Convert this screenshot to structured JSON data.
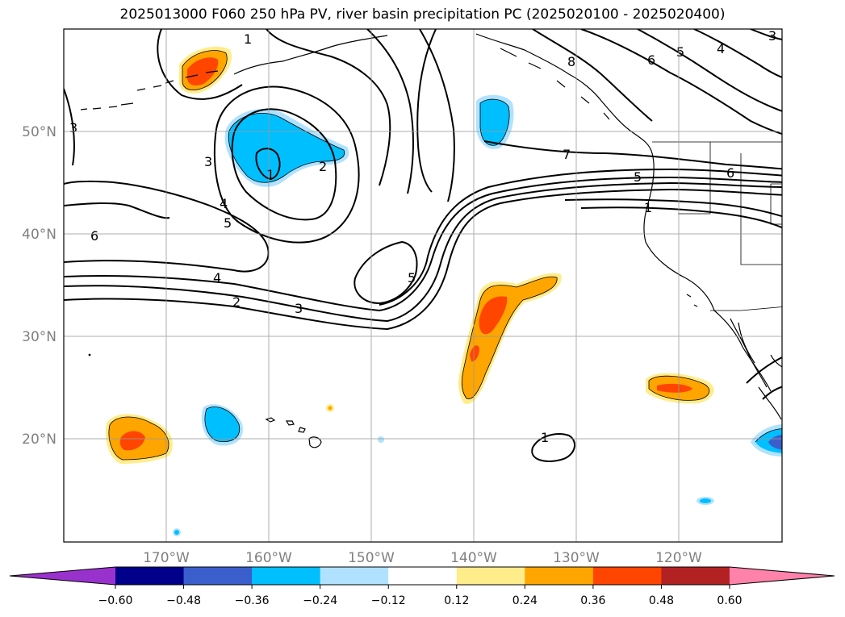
{
  "title": "2025013000 F060 250 hPa PV, river basin precipitation PC (2025020100 - 2025020400)",
  "lon_labels": [
    "170°W",
    "160°W",
    "150°W",
    "140°W",
    "130°W",
    "120°W"
  ],
  "lat_labels": [
    "50°N",
    "40°N",
    "30°N",
    "20°N"
  ],
  "colorbar": {
    "ticks": [
      "−0.60",
      "−0.48",
      "−0.36",
      "−0.24",
      "−0.12",
      "0.12",
      "0.24",
      "0.36",
      "0.48",
      "0.60"
    ],
    "colors": [
      "#9932CC",
      "#00008B",
      "#3A5FCD",
      "#00BFFF",
      "#B0E2FF",
      "#FFFFFF",
      "#FFEC8B",
      "#FFA500",
      "#FF4500",
      "#B22222",
      "#FF82AB"
    ]
  },
  "contour_labels": {
    "l1a": "1",
    "l1b": "1",
    "l1c": "1",
    "l1d": "1",
    "l2a": "2",
    "l2b": "2",
    "l3a": "3",
    "l3b": "3",
    "l3c": "3",
    "l3d": "3",
    "l4a": "4",
    "l4b": "4",
    "l4c": "4",
    "l5a": "5",
    "l5b": "5",
    "l5c": "5",
    "l5d": "5",
    "l6a": "6",
    "l6b": "6",
    "l6c": "6",
    "l7": "7",
    "l8": "8"
  },
  "pv_contour_levels": [
    1,
    2,
    3,
    4,
    5,
    6,
    7,
    8
  ],
  "chart_data": {
    "type": "heatmap",
    "description_fields": "250 hPa PV contours over filled precipitation PC",
    "lon_range": [
      -180,
      -110
    ],
    "lat_range": [
      10,
      60
    ],
    "contour_levels": [
      1,
      2,
      3,
      4,
      5,
      6,
      7,
      8
    ],
    "color_levels": [
      -0.6,
      -0.48,
      -0.36,
      -0.24,
      -0.12,
      0.12,
      0.24,
      0.36,
      0.48,
      0.6
    ]
  }
}
